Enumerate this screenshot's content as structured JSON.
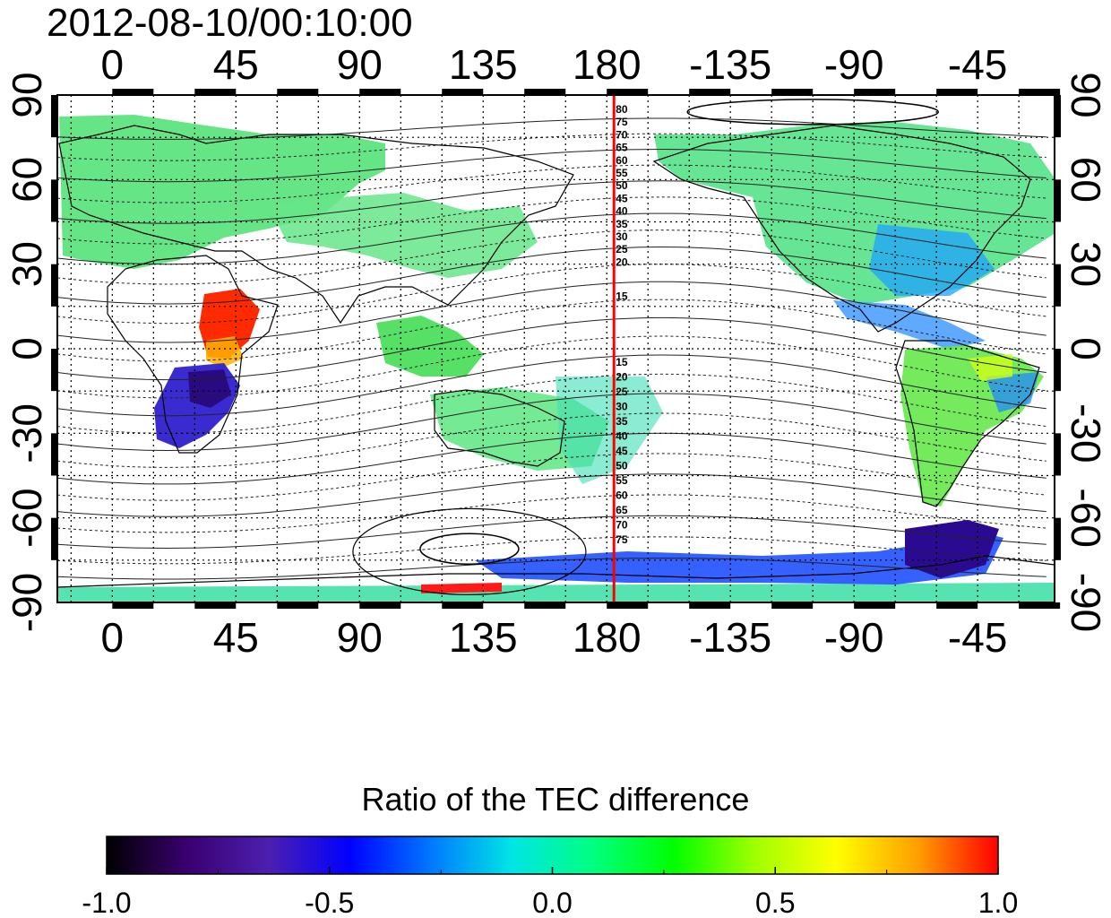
{
  "title": "2012-08-10/00:10:00",
  "map": {
    "x_tick_labels": [
      "0",
      "45",
      "90",
      "135",
      "180",
      "-135",
      "-90",
      "-45"
    ],
    "x_tick_lons": [
      0,
      45,
      90,
      135,
      180,
      225,
      270,
      315
    ],
    "y_tick_labels": [
      "90",
      "60",
      "30",
      "0",
      "-30",
      "-60",
      "-90"
    ],
    "y_tick_lats": [
      90,
      60,
      30,
      0,
      -30,
      -60,
      -90
    ],
    "lon_range": [
      -20,
      343
    ],
    "lat_range": [
      -90,
      90
    ],
    "terminator_longitude": 180,
    "terminator_color": "#ff0000",
    "contour_labels_north": [
      "80",
      "75",
      "70",
      "65",
      "60",
      "55",
      "50",
      "45",
      "40",
      "35",
      "30",
      "25",
      "20",
      "15"
    ],
    "contour_labels_south": [
      "15",
      "20",
      "25",
      "30",
      "35",
      "40",
      "45",
      "50",
      "55",
      "60",
      "65",
      "70",
      "75"
    ]
  },
  "colorbar": {
    "title": "Ratio of the TEC difference",
    "tick_labels": [
      "-1.0",
      "-0.5",
      "0.0",
      "0.5",
      "1.0"
    ],
    "tick_values": [
      -1.0,
      -0.5,
      0.0,
      0.5,
      1.0
    ],
    "range": [
      -1.0,
      1.0
    ],
    "colors": [
      "#000000",
      "#3a0070",
      "#4d1fb0",
      "#0000ff",
      "#0078ff",
      "#00e5e5",
      "#00ff80",
      "#00ff00",
      "#a0ff00",
      "#ffff00",
      "#ffa000",
      "#ff0000"
    ]
  }
}
